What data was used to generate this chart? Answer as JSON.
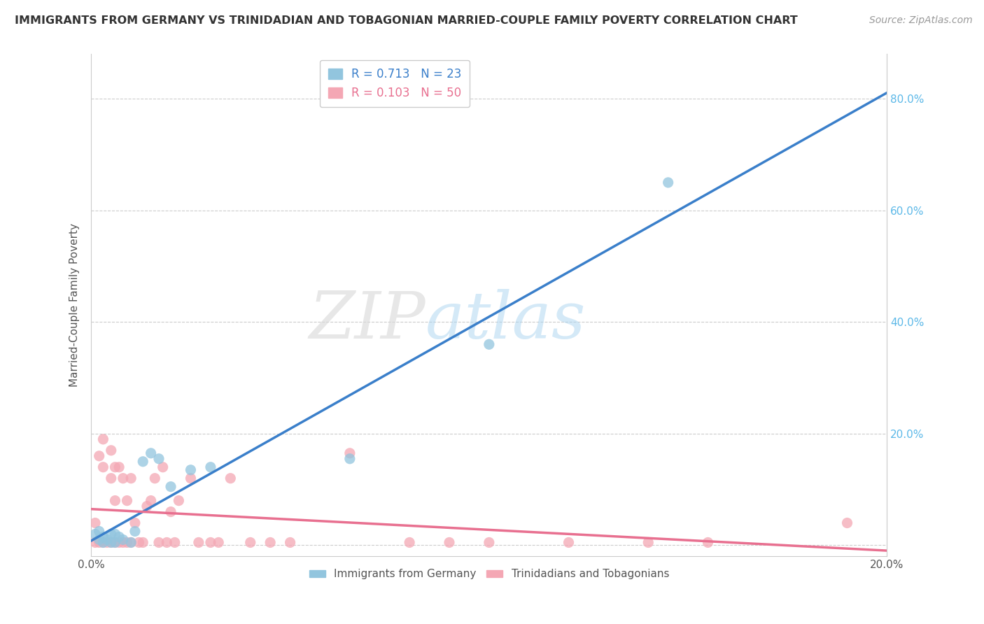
{
  "title": "IMMIGRANTS FROM GERMANY VS TRINIDADIAN AND TOBAGONIAN MARRIED-COUPLE FAMILY POVERTY CORRELATION CHART",
  "source": "Source: ZipAtlas.com",
  "ylabel": "Married-Couple Family Poverty",
  "xlabel_germany": "Immigrants from Germany",
  "xlabel_trinidad": "Trinidadians and Tobagonians",
  "xlim": [
    0.0,
    0.2
  ],
  "ylim": [
    -0.02,
    0.88
  ],
  "yticks": [
    0.0,
    0.2,
    0.4,
    0.6,
    0.8
  ],
  "xticks": [
    0.0,
    0.2
  ],
  "xtick_labels": [
    "0.0%",
    "20.0%"
  ],
  "ytick_labels_right": [
    "",
    "20.0%",
    "40.0%",
    "60.0%",
    "80.0%"
  ],
  "germany_R": 0.713,
  "germany_N": 23,
  "trinidad_R": 0.103,
  "trinidad_N": 50,
  "germany_color": "#92c5de",
  "trinidad_color": "#f4a7b4",
  "germany_line_color": "#3a7fca",
  "trinidad_line_color": "#e87090",
  "watermark_zip": "ZIP",
  "watermark_atlas": "atlas",
  "germany_scatter_x": [
    0.001,
    0.002,
    0.002,
    0.003,
    0.003,
    0.004,
    0.005,
    0.005,
    0.006,
    0.006,
    0.007,
    0.008,
    0.01,
    0.011,
    0.013,
    0.015,
    0.017,
    0.02,
    0.025,
    0.03,
    0.065,
    0.1,
    0.145
  ],
  "germany_scatter_y": [
    0.02,
    0.01,
    0.025,
    0.005,
    0.015,
    0.01,
    0.005,
    0.02,
    0.005,
    0.02,
    0.015,
    0.01,
    0.005,
    0.025,
    0.15,
    0.165,
    0.155,
    0.105,
    0.135,
    0.14,
    0.155,
    0.36,
    0.65
  ],
  "trinidad_scatter_x": [
    0.001,
    0.001,
    0.002,
    0.002,
    0.003,
    0.003,
    0.003,
    0.004,
    0.005,
    0.005,
    0.005,
    0.006,
    0.006,
    0.006,
    0.007,
    0.007,
    0.008,
    0.008,
    0.009,
    0.009,
    0.01,
    0.01,
    0.011,
    0.012,
    0.013,
    0.014,
    0.015,
    0.016,
    0.017,
    0.018,
    0.019,
    0.02,
    0.021,
    0.022,
    0.025,
    0.027,
    0.03,
    0.032,
    0.035,
    0.04,
    0.045,
    0.05,
    0.065,
    0.08,
    0.09,
    0.1,
    0.12,
    0.14,
    0.155,
    0.19
  ],
  "trinidad_scatter_y": [
    0.04,
    0.005,
    0.16,
    0.005,
    0.19,
    0.14,
    0.005,
    0.005,
    0.17,
    0.12,
    0.005,
    0.14,
    0.005,
    0.08,
    0.005,
    0.14,
    0.005,
    0.12,
    0.005,
    0.08,
    0.005,
    0.12,
    0.04,
    0.005,
    0.005,
    0.07,
    0.08,
    0.12,
    0.005,
    0.14,
    0.005,
    0.06,
    0.005,
    0.08,
    0.12,
    0.005,
    0.005,
    0.005,
    0.12,
    0.005,
    0.005,
    0.005,
    0.165,
    0.005,
    0.005,
    0.005,
    0.005,
    0.005,
    0.005,
    0.04
  ]
}
